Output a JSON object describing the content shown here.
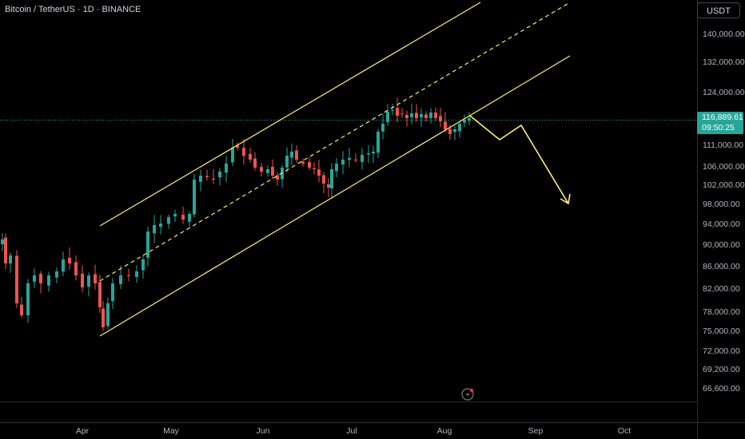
{
  "legend": {
    "symbol_title": "Bitcoin / TetherUS · 1D · BINANCE"
  },
  "price_axis": {
    "currency_button": "USDT",
    "current_price": "116,889.61",
    "countdown": "09:50:25",
    "ticks": [
      "140,000.00",
      "132,000.00",
      "124,000.00",
      "111,000.00",
      "106,000.00",
      "102,000.00",
      "98,000.00",
      "94,000.00",
      "90,000.00",
      "86,000.00",
      "82,000.00",
      "78,000.00",
      "75,000.00",
      "72,000.00",
      "69,200.00",
      "66,600.00"
    ]
  },
  "time_axis": {
    "ticks": [
      "Apr",
      "May",
      "Jun",
      "Jul",
      "Aug",
      "Sep",
      "Oct"
    ]
  },
  "icons": {
    "flash": "lightning-icon"
  },
  "colors": {
    "up": "#26a69a",
    "down": "#ef5350",
    "channel": "#ffeb7a",
    "projection": "#fff176",
    "price_tag": "#26a69a"
  },
  "chart_data": {
    "type": "candlestick",
    "scale": "log",
    "grid": false,
    "symbol": "BTCUSDT",
    "timeframe": "1D",
    "exchange": "BINANCE",
    "last_price": 116889.61,
    "annotations": [
      "ascending channel",
      "dashed midline",
      "projected drop path"
    ]
  }
}
